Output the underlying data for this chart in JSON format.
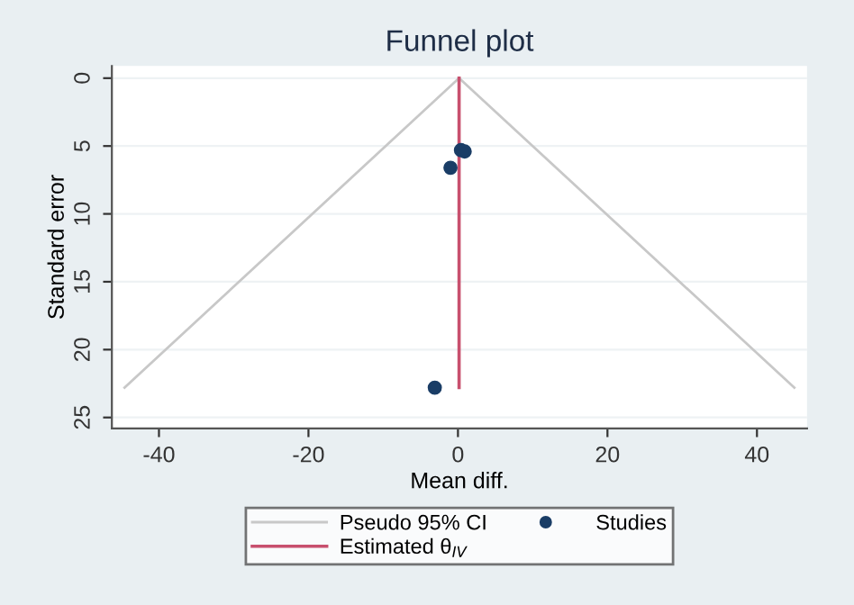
{
  "chart_data": {
    "type": "scatter",
    "title": "Funnel plot",
    "xlabel": "Mean diff.",
    "ylabel": "Standard error",
    "series": [
      {
        "name": "Pseudo 95% CI",
        "type": "line",
        "color": "#c8c8c8",
        "x": [
          -44.6,
          0.15,
          45
        ],
        "values": [
          22.8,
          0,
          22.8
        ]
      },
      {
        "name": "Estimated θ$_{IV}$",
        "type": "line",
        "color": "#c8506e",
        "x": [
          0.15,
          0.15
        ],
        "values": [
          0,
          22.8
        ]
      },
      {
        "name": "Studies",
        "marker": "circle",
        "color": "#1a3d66",
        "x": [
          0.4,
          0.9,
          -1.0,
          -3.1
        ],
        "values": [
          5.3,
          5.4,
          6.6,
          22.8
        ]
      }
    ],
    "xlim": [
      -46.3,
      46.7
    ],
    "xticks": [
      -40,
      -20,
      0,
      20,
      40
    ],
    "ylim": [
      25.8,
      -0.9
    ],
    "yticks": [
      0,
      5,
      10,
      15,
      20,
      25
    ],
    "grid": "y",
    "legend": "bottom"
  }
}
